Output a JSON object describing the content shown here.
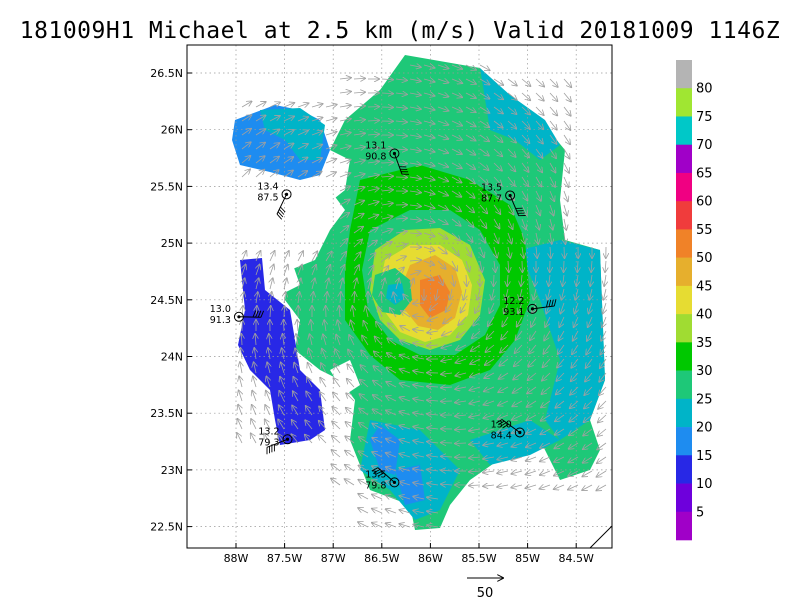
{
  "title": "181009H1 Michael at 2.5 km (m/s) Valid 20181009 1146Z",
  "axes": {
    "lat_labels": [
      "26.5N",
      "26N",
      "25.5N",
      "25N",
      "24.5N",
      "24N",
      "23.5N",
      "23N",
      "22.5N"
    ],
    "lon_labels": [
      "88W",
      "87.5W",
      "87W",
      "86.5W",
      "86W",
      "85.5W",
      "85W",
      "84.5W"
    ]
  },
  "colorbar": {
    "labels": [
      "5",
      "10",
      "15",
      "20",
      "25",
      "30",
      "35",
      "40",
      "45",
      "50",
      "55",
      "60",
      "65",
      "70",
      "75",
      "80"
    ],
    "colors": [
      "#a000c8",
      "#6e00dc",
      "#2828e6",
      "#1e8cf0",
      "#00b4c8",
      "#1ec878",
      "#00c800",
      "#a0dc32",
      "#e6dc32",
      "#e6af2d",
      "#f08228",
      "#f03c3c",
      "#f00082",
      "#a000c8",
      "#00c8c8",
      "#a0e632",
      "#b4b4b4"
    ]
  },
  "stations": [
    {
      "id": "st1",
      "top": "13.1",
      "bottom": "90.8",
      "lon": -86.37,
      "lat": 25.79
    },
    {
      "id": "st2",
      "top": "13.4",
      "bottom": "87.5",
      "lon": -87.48,
      "lat": 25.43
    },
    {
      "id": "st3",
      "top": "13.5",
      "bottom": "87.7",
      "lon": -85.18,
      "lat": 25.42
    },
    {
      "id": "st4",
      "top": "13.0",
      "bottom": "91.3",
      "lon": -87.97,
      "lat": 24.35
    },
    {
      "id": "st5",
      "top": "12.2",
      "bottom": "93.1",
      "lon": -84.95,
      "lat": 24.42
    },
    {
      "id": "st6",
      "top": "13.2",
      "bottom": "79.3",
      "lon": -87.47,
      "lat": 23.27
    },
    {
      "id": "st7",
      "top": "13.0",
      "bottom": "84.4",
      "lon": -85.08,
      "lat": 23.33
    },
    {
      "id": "st8",
      "top": "13.5",
      "bottom": "79.8",
      "lon": -86.37,
      "lat": 22.89
    }
  ],
  "reference_vector_label": "50"
}
